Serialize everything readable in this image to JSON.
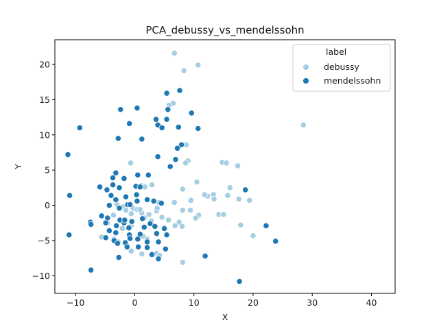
{
  "chart_data": {
    "type": "scatter",
    "title": "PCA_debussy_vs_mendelssohn",
    "xlabel": "X",
    "ylabel": "Y",
    "xlim": [
      -13.5,
      44
    ],
    "ylim": [
      -12.5,
      23.5
    ],
    "xticks": [
      -10,
      0,
      10,
      20,
      30,
      40
    ],
    "yticks": [
      -10,
      -5,
      0,
      5,
      10,
      15,
      20
    ],
    "grid": false,
    "legend": {
      "title": "label",
      "placement": "top-right"
    },
    "series": [
      {
        "name": "debussy",
        "color": "#a6cee3",
        "points": [
          [
            6.7,
            21.6
          ],
          [
            8.3,
            19.1
          ],
          [
            10.7,
            19.9
          ],
          [
            28.5,
            11.4
          ],
          [
            6.5,
            14.5
          ],
          [
            5.8,
            14.2
          ],
          [
            8.7,
            8.6
          ],
          [
            9.0,
            6.3
          ],
          [
            8.6,
            6.0
          ],
          [
            -0.7,
            6.0
          ],
          [
            14.8,
            6.1
          ],
          [
            15.5,
            6.0
          ],
          [
            17.4,
            5.6
          ],
          [
            10.5,
            3.3
          ],
          [
            8.1,
            2.3
          ],
          [
            16.1,
            2.5
          ],
          [
            12.3,
            1.3
          ],
          [
            13.3,
            1.5
          ],
          [
            15.7,
            1.4
          ],
          [
            17.6,
            0.9
          ],
          [
            19.4,
            0.7
          ],
          [
            11.8,
            1.5
          ],
          [
            9.5,
            0.7
          ],
          [
            13.4,
            0.9
          ],
          [
            2.9,
            2.9
          ],
          [
            1.1,
            2.8
          ],
          [
            1.7,
            2.6
          ],
          [
            6.7,
            0.4
          ],
          [
            8.1,
            -0.7
          ],
          [
            9.4,
            -0.7
          ],
          [
            10.8,
            -1.4
          ],
          [
            10.3,
            -1.8
          ],
          [
            14.2,
            -1.3
          ],
          [
            15.0,
            -1.3
          ],
          [
            17.9,
            -2.8
          ],
          [
            20.0,
            -4.3
          ],
          [
            -3.0,
            0.1
          ],
          [
            -2.0,
            -0.2
          ],
          [
            -0.3,
            -0.4
          ],
          [
            0.4,
            -0.6
          ],
          [
            1.2,
            -1.1
          ],
          [
            2.4,
            -1.3
          ],
          [
            3.7,
            -0.8
          ],
          [
            4.6,
            -1.7
          ],
          [
            5.7,
            -2.1
          ],
          [
            7.5,
            -2.4
          ],
          [
            8.0,
            -3.0
          ],
          [
            6.8,
            -2.9
          ],
          [
            -1.5,
            -0.7
          ],
          [
            -0.6,
            -1.2
          ],
          [
            0.9,
            -0.6
          ],
          [
            1.6,
            -1.8
          ],
          [
            2.8,
            -2.2
          ],
          [
            3.8,
            -0.4
          ],
          [
            -5.6,
            -4.5
          ],
          [
            -3.5,
            -4.8
          ],
          [
            -2.8,
            -5.2
          ],
          [
            -0.6,
            -6.5
          ],
          [
            -1.3,
            -5.7
          ],
          [
            1.4,
            -4.4
          ],
          [
            1.2,
            -6.9
          ],
          [
            3.7,
            -6.8
          ],
          [
            4.2,
            -7.1
          ],
          [
            8.1,
            -8.1
          ],
          [
            -3.6,
            -1.4
          ],
          [
            4.1,
            0.4
          ],
          [
            -0.6,
            -2.9
          ],
          [
            2.1,
            -4.8
          ],
          [
            -4.6,
            -2.5
          ],
          [
            -2.1,
            -3.3
          ]
        ]
      },
      {
        "name": "mendelssohn",
        "color": "#1f78b4",
        "points": [
          [
            7.6,
            16.3
          ],
          [
            5.4,
            15.9
          ],
          [
            0.4,
            13.8
          ],
          [
            5.6,
            13.6
          ],
          [
            -2.4,
            13.6
          ],
          [
            9.6,
            13.1
          ],
          [
            -0.9,
            11.6
          ],
          [
            3.6,
            12.2
          ],
          [
            5.4,
            12.2
          ],
          [
            -9.3,
            11.0
          ],
          [
            3.9,
            11.4
          ],
          [
            4.6,
            11.0
          ],
          [
            7.4,
            11.1
          ],
          [
            10.7,
            10.9
          ],
          [
            -2.8,
            9.5
          ],
          [
            1.2,
            9.4
          ],
          [
            7.9,
            8.6
          ],
          [
            7.2,
            8.1
          ],
          [
            3.9,
            6.9
          ],
          [
            6.9,
            6.5
          ],
          [
            -11.3,
            7.2
          ],
          [
            6.0,
            5.5
          ],
          [
            -3.2,
            4.6
          ],
          [
            -3.7,
            3.9
          ],
          [
            2.3,
            4.3
          ],
          [
            0.5,
            4.3
          ],
          [
            -1.8,
            3.8
          ],
          [
            -4.7,
            2.2
          ],
          [
            -3.7,
            2.9
          ],
          [
            -2.6,
            2.5
          ],
          [
            -5.9,
            2.6
          ],
          [
            0.2,
            2.7
          ],
          [
            0.9,
            2.6
          ],
          [
            -4.0,
            1.4
          ],
          [
            -1.5,
            1.2
          ],
          [
            0.3,
            1.5
          ],
          [
            -11.0,
            1.4
          ],
          [
            -3.2,
            0.8
          ],
          [
            -4.3,
            0.0
          ],
          [
            -1.2,
            0.1
          ],
          [
            0.4,
            0.6
          ],
          [
            2.1,
            0.8
          ],
          [
            3.2,
            0.6
          ],
          [
            4.5,
            0.3
          ],
          [
            -5.6,
            -1.5
          ],
          [
            -4.6,
            -1.8
          ],
          [
            -2.5,
            -2.1
          ],
          [
            -1.8,
            -2.5
          ],
          [
            -0.5,
            -2.3
          ],
          [
            1.3,
            -1.9
          ],
          [
            2.6,
            -2.6
          ],
          [
            -7.5,
            -2.4
          ],
          [
            -7.4,
            -2.7
          ],
          [
            -4.9,
            -2.5
          ],
          [
            -3.1,
            -2.9
          ],
          [
            -1.0,
            -3.2
          ],
          [
            1.6,
            -3.1
          ],
          [
            3.4,
            -3.0
          ],
          [
            5.0,
            -3.3
          ],
          [
            -4.3,
            -3.6
          ],
          [
            -3.2,
            -3.9
          ],
          [
            -0.9,
            -4.2
          ],
          [
            0.9,
            -4.1
          ],
          [
            3.7,
            -4.0
          ],
          [
            5.4,
            -4.2
          ],
          [
            -11.1,
            -4.2
          ],
          [
            -4.9,
            -4.6
          ],
          [
            -3.5,
            -5.0
          ],
          [
            -1.6,
            -5.3
          ],
          [
            -0.8,
            -4.7
          ],
          [
            0.5,
            -4.8
          ],
          [
            2.1,
            -5.2
          ],
          [
            4.0,
            -5.2
          ],
          [
            -2.9,
            -5.4
          ],
          [
            -1.3,
            -5.9
          ],
          [
            0.6,
            -5.9
          ],
          [
            2.1,
            -6.0
          ],
          [
            5.2,
            -6.2
          ],
          [
            -2.7,
            -7.4
          ],
          [
            2.9,
            -7.0
          ],
          [
            4.0,
            -7.6
          ],
          [
            -7.4,
            -9.2
          ],
          [
            11.9,
            -7.2
          ],
          [
            17.7,
            -10.8
          ],
          [
            18.7,
            2.2
          ],
          [
            22.2,
            -2.9
          ],
          [
            23.8,
            -5.1
          ],
          [
            -1.7,
            -2.1
          ],
          [
            -2.6,
            -0.4
          ],
          [
            -0.8,
            0.1
          ]
        ]
      }
    ]
  }
}
